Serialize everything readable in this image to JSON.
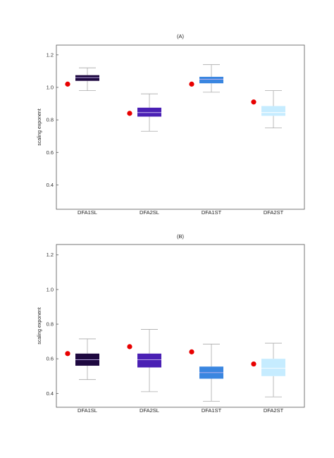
{
  "chart_data": [
    {
      "type": "box",
      "title": "(A)",
      "ylabel": "scaling exponent",
      "xlabel": "",
      "ylim": [
        0.25,
        1.26
      ],
      "yticks": [
        0.4,
        0.6,
        0.8,
        1.0,
        1.2
      ],
      "ytick_labels": [
        "0.4",
        "0.6",
        "0.8",
        "1.0",
        "1.2"
      ],
      "grid": false,
      "legend": "none",
      "categories": [
        "DFA1SL",
        "DFA2SL",
        "DFA1ST",
        "DFA2ST"
      ],
      "boxes": [
        {
          "category": "DFA1SL",
          "whisker_low": 0.98,
          "q1": 1.04,
          "median": 1.06,
          "q3": 1.075,
          "whisker_high": 1.12,
          "color": "#1e0840"
        },
        {
          "category": "DFA2SL",
          "whisker_low": 0.73,
          "q1": 0.82,
          "median": 0.845,
          "q3": 0.875,
          "whisker_high": 0.96,
          "color": "#4a20b4"
        },
        {
          "category": "DFA1ST",
          "whisker_low": 0.97,
          "q1": 1.025,
          "median": 1.05,
          "q3": 1.065,
          "whisker_high": 1.14,
          "color": "#3a86e0"
        },
        {
          "category": "DFA2ST",
          "whisker_low": 0.75,
          "q1": 0.825,
          "median": 0.845,
          "q3": 0.885,
          "whisker_high": 0.98,
          "color": "#c6ecff"
        }
      ],
      "markers": [
        {
          "category": "DFA1SL",
          "value": 1.02,
          "color": "#e80000"
        },
        {
          "category": "DFA2SL",
          "value": 0.84,
          "color": "#e80000"
        },
        {
          "category": "DFA1ST",
          "value": 1.02,
          "color": "#e80000"
        },
        {
          "category": "DFA2ST",
          "value": 0.91,
          "color": "#e80000"
        }
      ]
    },
    {
      "type": "box",
      "title": "(B)",
      "ylabel": "scaling exponent",
      "xlabel": "",
      "ylim": [
        0.32,
        1.26
      ],
      "yticks": [
        0.4,
        0.6,
        0.8,
        1.0,
        1.2
      ],
      "ytick_labels": [
        "0.4",
        "0.6",
        "0.8",
        "1.0",
        "1.2"
      ],
      "grid": false,
      "legend": "none",
      "categories": [
        "DFA1SL",
        "DFA2SL",
        "DFA1ST",
        "DFA2ST"
      ],
      "boxes": [
        {
          "category": "DFA1SL",
          "whisker_low": 0.48,
          "q1": 0.56,
          "median": 0.595,
          "q3": 0.63,
          "whisker_high": 0.715,
          "color": "#1e0840"
        },
        {
          "category": "DFA2SL",
          "whisker_low": 0.41,
          "q1": 0.55,
          "median": 0.595,
          "q3": 0.63,
          "whisker_high": 0.77,
          "color": "#4a20b4"
        },
        {
          "category": "DFA1ST",
          "whisker_low": 0.355,
          "q1": 0.485,
          "median": 0.52,
          "q3": 0.555,
          "whisker_high": 0.685,
          "color": "#3a86e0"
        },
        {
          "category": "DFA2ST",
          "whisker_low": 0.38,
          "q1": 0.5,
          "median": 0.545,
          "q3": 0.6,
          "whisker_high": 0.69,
          "color": "#c6ecff"
        }
      ],
      "markers": [
        {
          "category": "DFA1SL",
          "value": 0.63,
          "color": "#e80000"
        },
        {
          "category": "DFA2SL",
          "value": 0.67,
          "color": "#e80000"
        },
        {
          "category": "DFA1ST",
          "value": 0.64,
          "color": "#e80000"
        },
        {
          "category": "DFA2ST",
          "value": 0.57,
          "color": "#e80000"
        }
      ]
    }
  ]
}
